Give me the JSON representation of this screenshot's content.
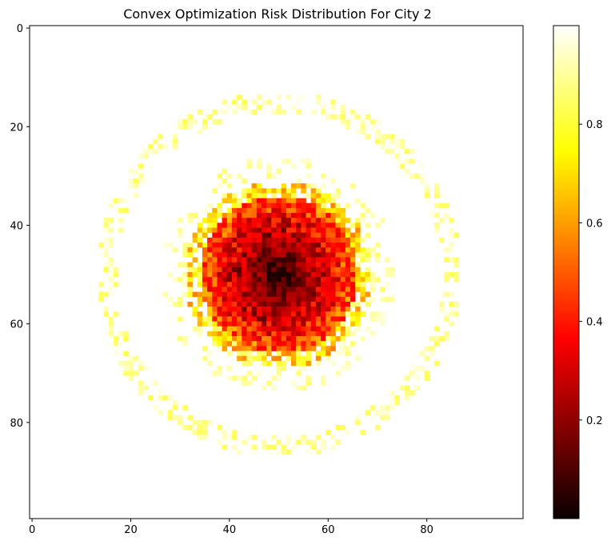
{
  "chart_data": {
    "type": "heatmap",
    "title": "Convex Optimization Risk Distribution For City 2",
    "xlabel": "",
    "ylabel": "",
    "grid_size": [
      100,
      100
    ],
    "xlim": [
      -0.5,
      99.5
    ],
    "ylim": [
      99.5,
      -0.5
    ],
    "x_ticks": [
      0,
      20,
      40,
      60,
      80
    ],
    "y_ticks": [
      0,
      20,
      40,
      60,
      80
    ],
    "colormap": "hot",
    "colorbar": {
      "range": [
        0.0,
        1.0
      ],
      "ticks": [
        0.2,
        0.4,
        0.6,
        0.8
      ]
    },
    "description_of_values": {
      "center": [
        50,
        50
      ],
      "core_radius": 8,
      "core_value_range": [
        0.0,
        0.25
      ],
      "red_ring_radius": [
        8,
        16
      ],
      "red_ring_value_range": [
        0.25,
        0.5
      ],
      "orange_yellow_ring_radius": [
        16,
        19
      ],
      "orange_yellow_value_range": [
        0.5,
        0.85
      ],
      "outer_ring_radius": [
        33,
        37
      ],
      "outer_ring_value_range": [
        0.82,
        0.99
      ],
      "background_value": 1.0
    }
  }
}
